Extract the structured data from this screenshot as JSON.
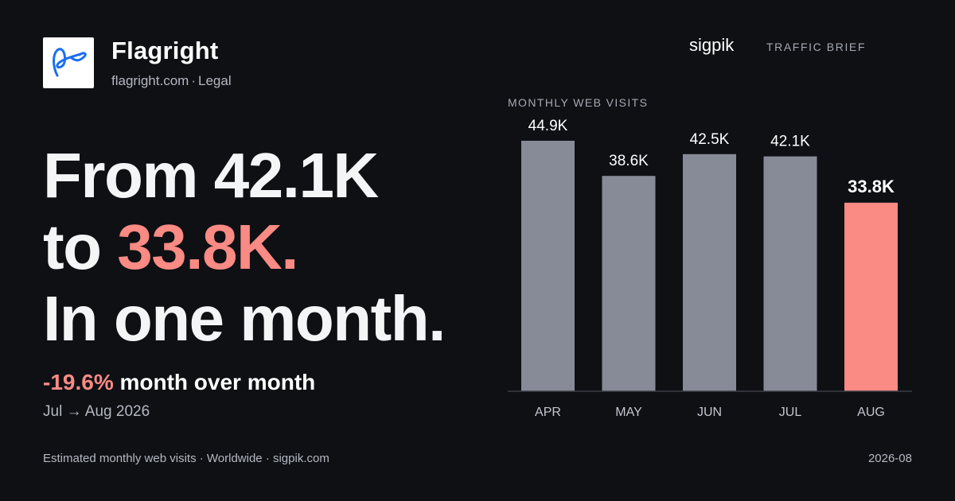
{
  "brand": {
    "name": "Flagright",
    "domain": "flagright.com",
    "category": "Legal"
  },
  "header": {
    "source": "sigpik",
    "label": "TRAFFIC BRIEF"
  },
  "headline": {
    "line1": "From 42.1K",
    "line2_prefix": "to ",
    "line2_value": "33.8K.",
    "line3": "In one month."
  },
  "delta": {
    "pct": "-19.6%",
    "text": " month over month",
    "range": "Jul → Aug 2026"
  },
  "footer": {
    "left": "Estimated monthly web visits · Worldwide · sigpik.com",
    "right": "2026-08"
  },
  "colors": {
    "background": "#0e1014",
    "bar": "#878b98",
    "highlight": "#fa8a84"
  },
  "chart_data": {
    "type": "bar",
    "title": "MONTHLY WEB VISITS",
    "categories": [
      "APR",
      "MAY",
      "JUN",
      "JUL",
      "AUG"
    ],
    "values": [
      44900,
      38600,
      42500,
      42100,
      33800
    ],
    "labels": [
      "44.9K",
      "38.6K",
      "42.5K",
      "42.1K",
      "33.8K"
    ],
    "highlight": "AUG",
    "ylim": [
      0,
      44900
    ],
    "grid": false
  }
}
